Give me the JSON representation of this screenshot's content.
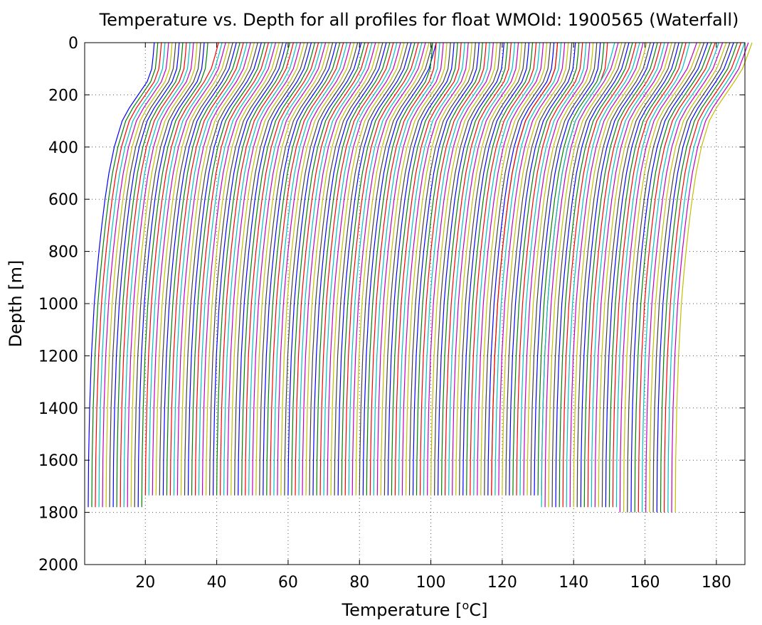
{
  "chart_data": {
    "type": "line",
    "title": "Temperature vs. Depth for all profiles for float WMOId: 1900565 (Waterfall)",
    "xlabel": {
      "prefix": "Temperature [",
      "superscript": "o",
      "suffix": "C]"
    },
    "ylabel": "Depth [m]",
    "xlim": [
      3,
      188
    ],
    "ylim": [
      0,
      2000
    ],
    "y_reversed": true,
    "grid": true,
    "grid_style": "dotted",
    "legend": "none",
    "xticks": [
      20,
      40,
      60,
      80,
      100,
      120,
      140,
      160,
      180
    ],
    "yticks": [
      0,
      200,
      400,
      600,
      800,
      1000,
      1200,
      1400,
      1600,
      1800,
      2000
    ],
    "series_colors": [
      "#0000ff",
      "#008000",
      "#ff0000",
      "#00bfbf",
      "#bf00bf",
      "#bfbf00",
      "#404040"
    ],
    "profile_count": 167,
    "x_offset_step_per_profile": 1.0,
    "profile_shape": {
      "description": "each profile is offset by the step along x; values are temperature offset from the profile's deep-water value",
      "depth": [
        0,
        50,
        100,
        150,
        200,
        250,
        300,
        400,
        500,
        600,
        700,
        800,
        900,
        1000,
        1200,
        1400,
        1600,
        1800
      ],
      "temp_offset": [
        18.5,
        18.2,
        17.8,
        16.5,
        14.0,
        11.5,
        9.5,
        7.3,
        5.8,
        4.7,
        3.8,
        3.0,
        2.3,
        1.7,
        0.9,
        0.4,
        0.1,
        0.0
      ]
    },
    "profile_groups": [
      {
        "profiles": 16,
        "x_deep_start": 4.0,
        "x_deep_end": 19.0,
        "max_depth": 1780,
        "surface_boost": 0.0
      },
      {
        "profiles": 62,
        "x_deep_start": 20.0,
        "x_deep_end": 81.0,
        "max_depth": 1735,
        "surface_boost": 2.0
      },
      {
        "profiles": 36,
        "x_deep_start": 82.0,
        "x_deep_end": 117.0,
        "max_depth": 1735,
        "surface_boost": 0.0
      },
      {
        "profiles": 15,
        "x_deep_start": 117.0,
        "x_deep_end": 131.0,
        "max_depth": 1735,
        "surface_boost": 0.0
      },
      {
        "profiles": 22,
        "x_deep_start": 131.0,
        "x_deep_end": 152.0,
        "max_depth": 1780,
        "surface_boost": 2.0
      },
      {
        "profiles": 16,
        "x_deep_start": 153.0,
        "x_deep_end": 168.5,
        "max_depth": 1830,
        "surface_boost": 3.0
      }
    ]
  }
}
